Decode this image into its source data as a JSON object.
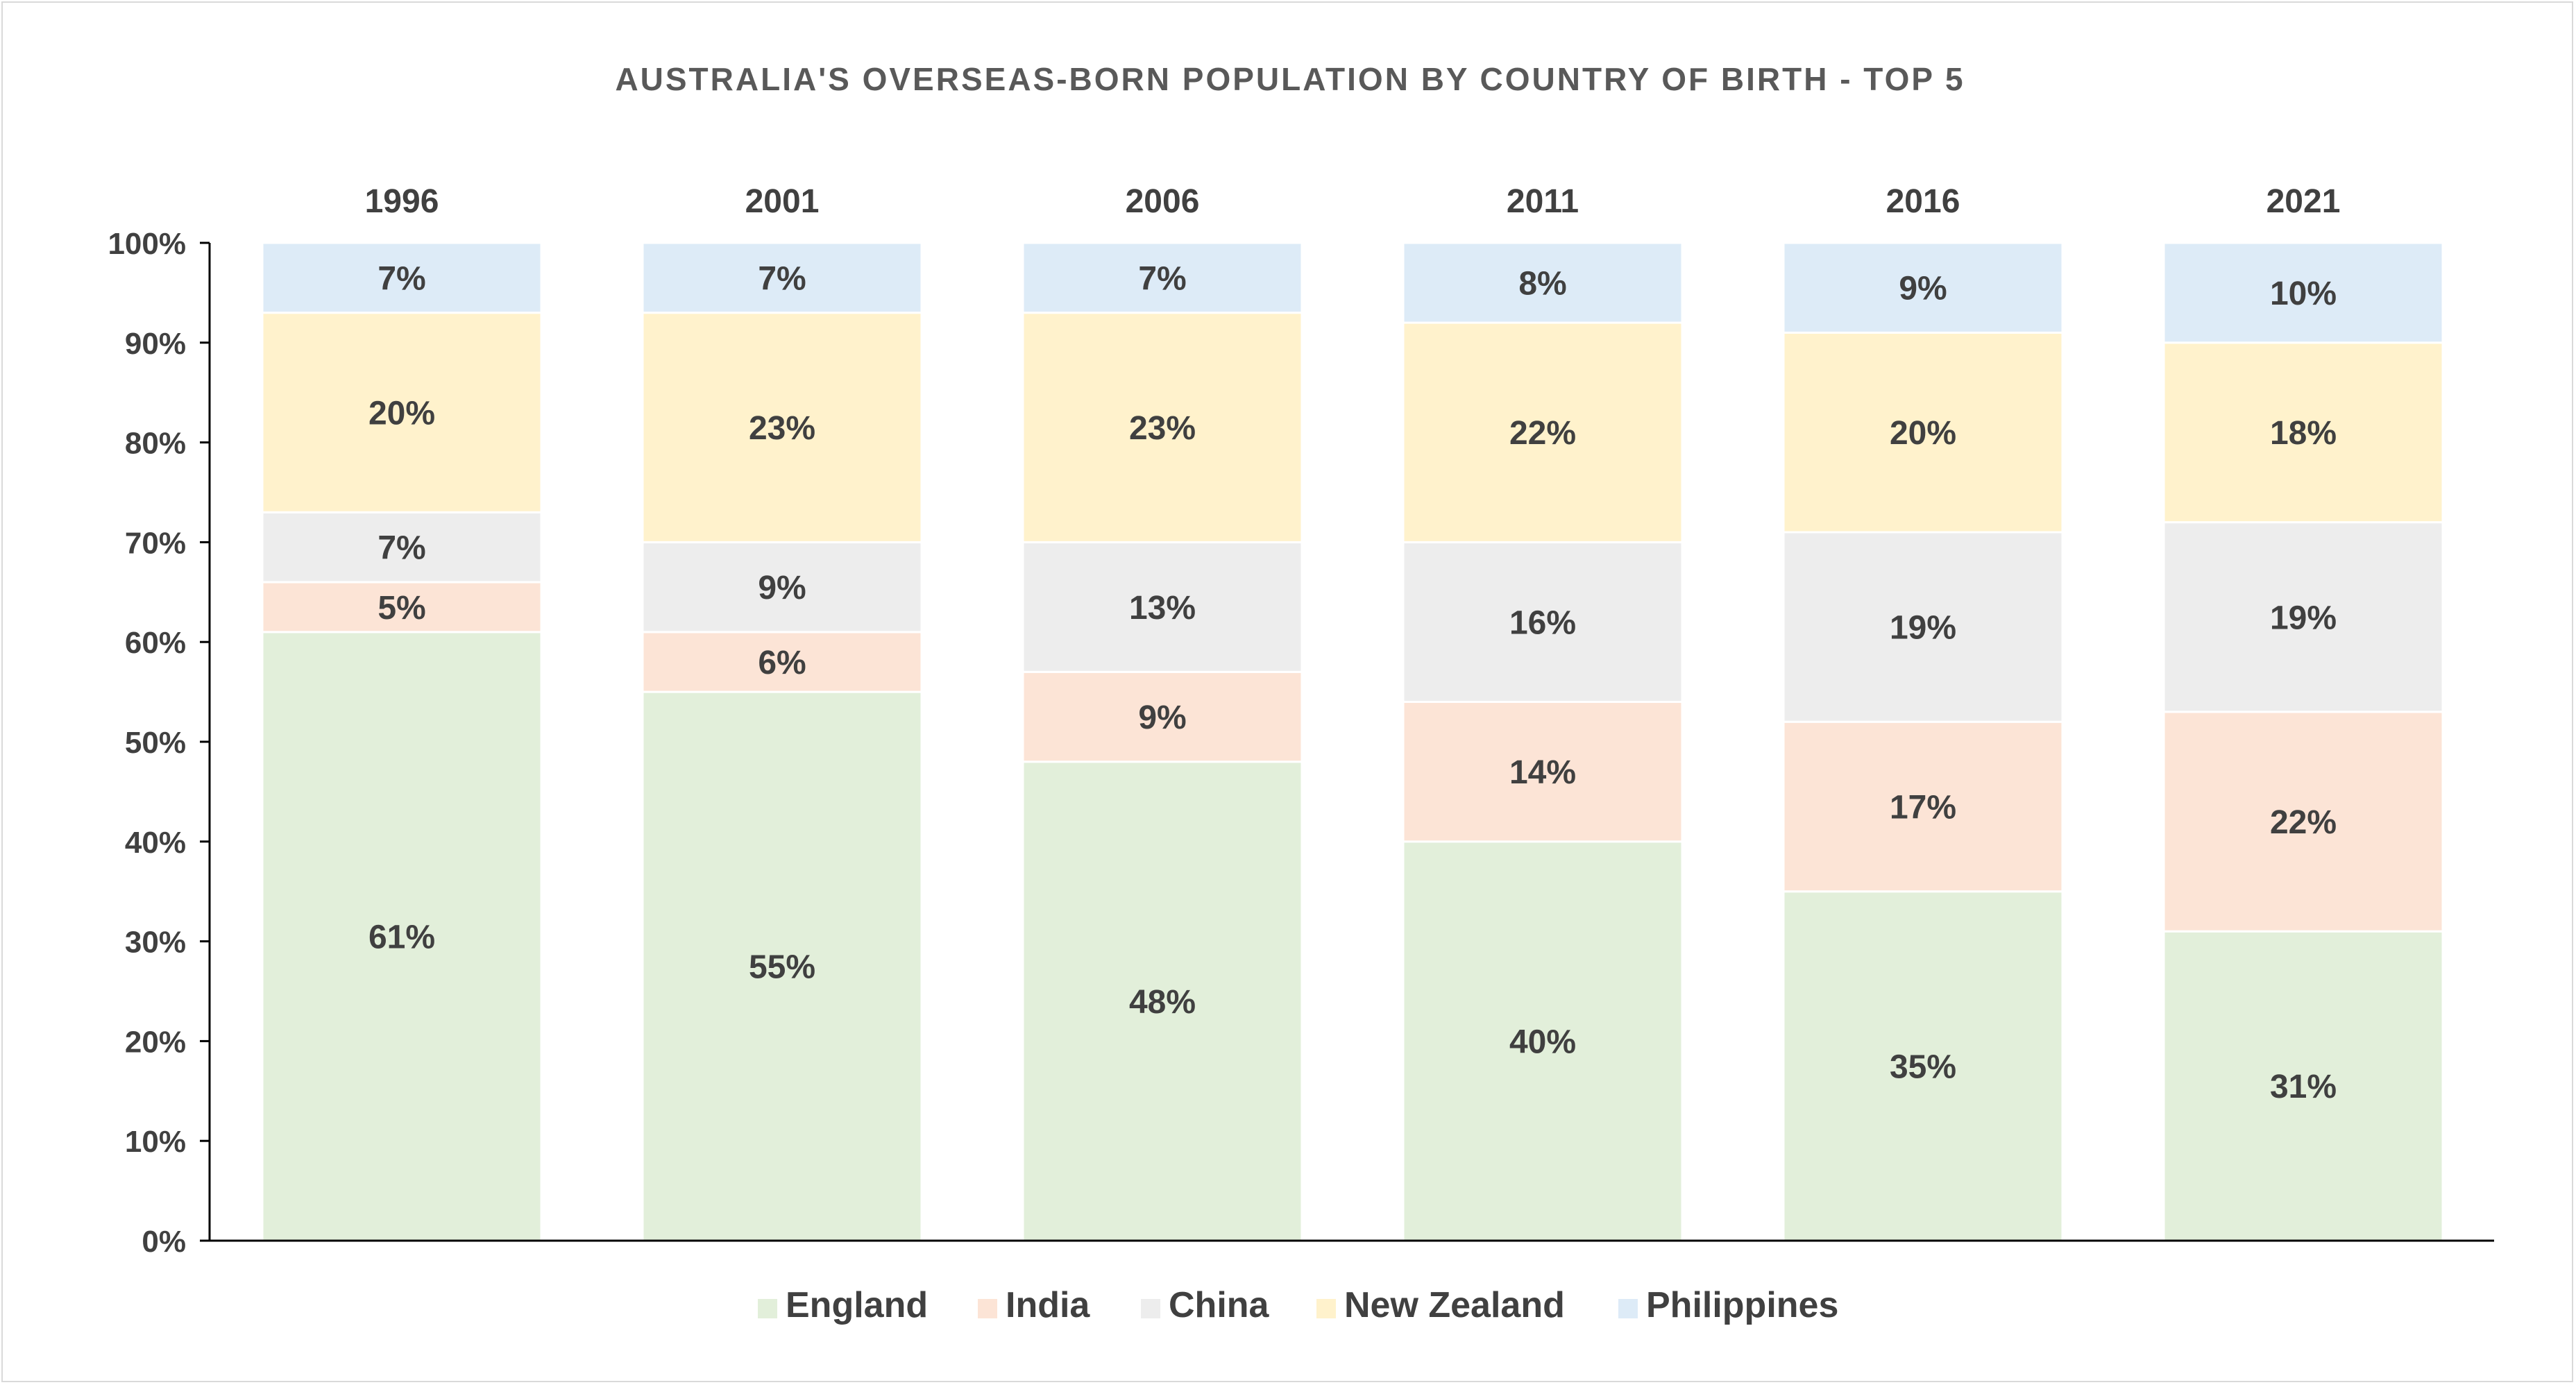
{
  "chart_data": {
    "type": "bar",
    "stacked": true,
    "percent_stacked": true,
    "title": "AUSTRALIA'S OVERSEAS-BORN POPULATION BY COUNTRY OF BIRTH - TOP 5",
    "categories": [
      "1996",
      "2001",
      "2006",
      "2011",
      "2016",
      "2021"
    ],
    "series": [
      {
        "name": "England",
        "color": "#e2efda",
        "values": [
          61,
          55,
          48,
          40,
          35,
          31
        ],
        "labels": [
          "61%",
          "55%",
          "48%",
          "40%",
          "35%",
          "31%"
        ]
      },
      {
        "name": "India",
        "color": "#fce4d6",
        "values": [
          5,
          6,
          9,
          14,
          17,
          22
        ],
        "labels": [
          "5%",
          "6%",
          "9%",
          "14%",
          "17%",
          "22%"
        ]
      },
      {
        "name": "China",
        "color": "#ededed",
        "values": [
          7,
          9,
          13,
          16,
          19,
          19
        ],
        "labels": [
          "7%",
          "9%",
          "13%",
          "16%",
          "19%",
          "19%"
        ]
      },
      {
        "name": "New Zealand",
        "color": "#fff2cc",
        "values": [
          20,
          23,
          23,
          22,
          20,
          18
        ],
        "labels": [
          "20%",
          "23%",
          "23%",
          "22%",
          "20%",
          "18%"
        ]
      },
      {
        "name": "Philippines",
        "color": "#ddebf7",
        "values": [
          7,
          7,
          7,
          8,
          9,
          10
        ],
        "labels": [
          "7%",
          "7%",
          "7%",
          "8%",
          "9%",
          "10%"
        ]
      }
    ],
    "y_ticks": [
      "0%",
      "10%",
      "20%",
      "30%",
      "40%",
      "50%",
      "60%",
      "70%",
      "80%",
      "90%",
      "100%"
    ],
    "ylim": [
      0,
      100
    ],
    "category_position": "top",
    "grid": false,
    "legend_position": "bottom"
  }
}
